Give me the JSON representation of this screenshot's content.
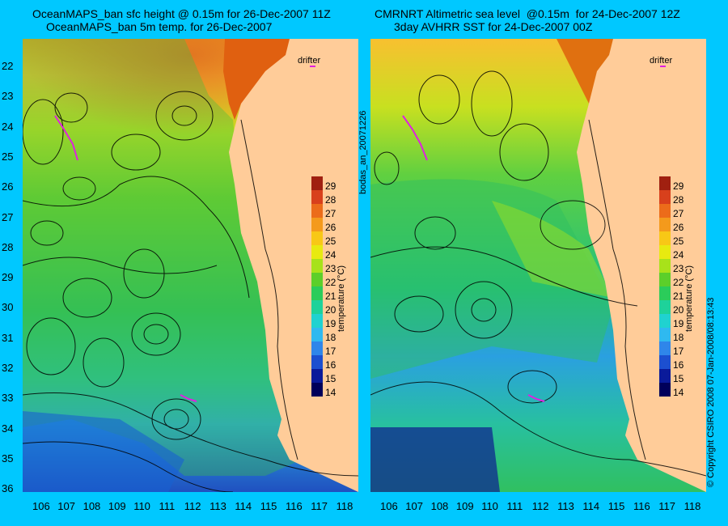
{
  "left_panel": {
    "title_line1": "OceanMAPS_ban sfc height @ 0.15m for 26-Dec-2007 11Z",
    "title_line2": "OceanMAPS_ban 5m temp. for 26-Dec-2007",
    "drifter_label": "drifter"
  },
  "right_panel": {
    "title_line1": "CMRNRT Altimetric sea level  @0.15m  for 24-Dec-2007 12Z",
    "title_line2": "3day AVHRR SST for 24-Dec-2007 00Z",
    "drifter_label": "drifter"
  },
  "side_labels": {
    "run_id": "bodas_an_20071226",
    "copyright": "© Copyright CSIRO 2008   07-Jan-2008/08:13:43"
  },
  "colorbar": {
    "label": "temperature (°C)",
    "ticks": [
      "29",
      "28",
      "27",
      "26",
      "25",
      "24",
      "23",
      "22",
      "21",
      "20",
      "19",
      "18",
      "17",
      "16",
      "15",
      "14"
    ],
    "range": [
      14,
      29
    ],
    "colors": [
      "#00005a",
      "#0a1a9a",
      "#1c4fd0",
      "#2f86ea",
      "#2fb9f0",
      "#20d2d0",
      "#1ed29a",
      "#2bcc5a",
      "#5ccf2a",
      "#a8e21a",
      "#e8ea10",
      "#f8c816",
      "#f49a1c",
      "#ec6c1a",
      "#d8401c",
      "#a02010"
    ]
  },
  "axes": {
    "lat_ticks": [
      "22",
      "23",
      "24",
      "25",
      "26",
      "27",
      "28",
      "29",
      "30",
      "31",
      "32",
      "33",
      "34",
      "35",
      "36"
    ],
    "lon_ticks": [
      "106",
      "107",
      "108",
      "109",
      "110",
      "111",
      "112",
      "113",
      "114",
      "115",
      "116",
      "117",
      "118"
    ]
  }
}
